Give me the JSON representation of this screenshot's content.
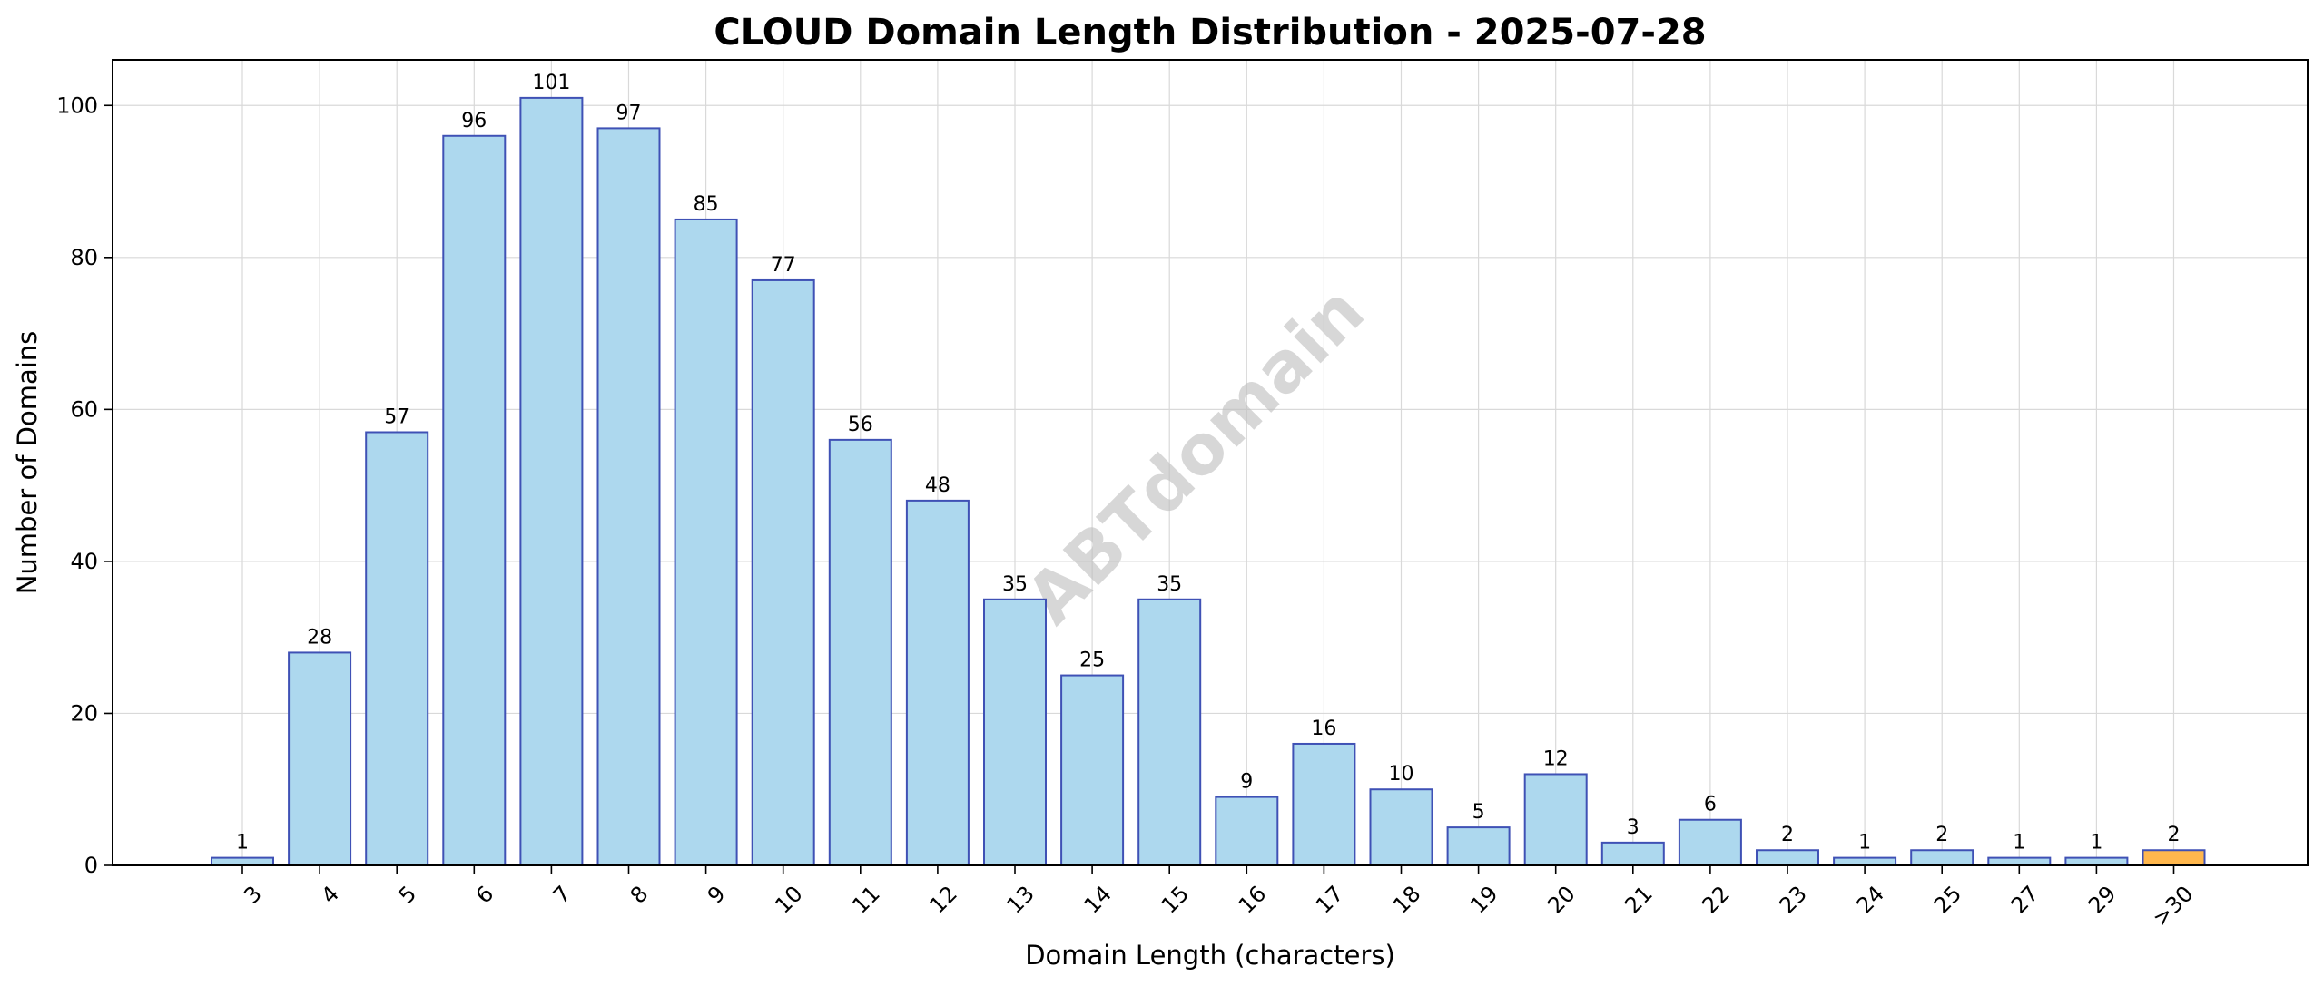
{
  "chart_data": {
    "type": "bar",
    "title": "CLOUD Domain Length Distribution - 2025-07-28",
    "xlabel": "Domain Length (characters)",
    "ylabel": "Number of Domains",
    "watermark": "ABTdomain",
    "categories": [
      "3",
      "4",
      "5",
      "6",
      "7",
      "8",
      "9",
      "10",
      "11",
      "12",
      "13",
      "14",
      "15",
      "16",
      "17",
      "18",
      "19",
      "20",
      "21",
      "22",
      "23",
      "24",
      "25",
      "27",
      "29",
      ">30"
    ],
    "values": [
      1,
      28,
      57,
      96,
      101,
      97,
      85,
      77,
      56,
      48,
      35,
      25,
      35,
      9,
      16,
      10,
      5,
      12,
      3,
      6,
      2,
      1,
      2,
      1,
      1,
      2
    ],
    "ylim": [
      0,
      106
    ],
    "yticks": [
      0,
      20,
      40,
      60,
      80,
      100
    ],
    "grid": true,
    "colors": {
      "bar_fill": "#add8ee",
      "bar_edge": "#3f51b5",
      "highlight_fill": "#ffb74d",
      "highlight_edge": "#3f51b5"
    },
    "highlight_category": ">30"
  }
}
